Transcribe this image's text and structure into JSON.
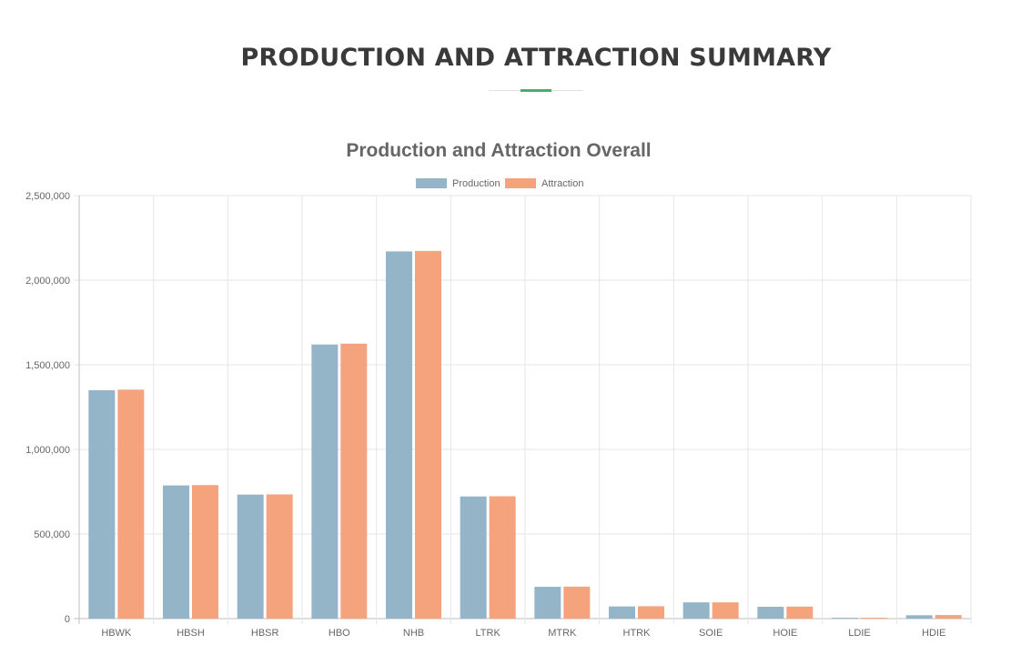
{
  "page": {
    "section_title": "PRODUCTION AND ATTRACTION SUMMARY",
    "accent_color": "#43b36b"
  },
  "chart_data": {
    "type": "bar",
    "title": "Production and Attraction Overall",
    "xlabel": "",
    "ylabel": "",
    "categories": [
      "HBWK",
      "HBSH",
      "HBSR",
      "HBO",
      "NHB",
      "LTRK",
      "MTRK",
      "HTRK",
      "SOIE",
      "HOIE",
      "LDIE",
      "HDIE"
    ],
    "series": [
      {
        "name": "Production",
        "color": "#94b5c7",
        "values": [
          1350000,
          787000,
          733000,
          1620000,
          2170000,
          722000,
          188000,
          72000,
          96000,
          70000,
          5000,
          20000
        ]
      },
      {
        "name": "Attraction",
        "color": "#f4a37c",
        "values": [
          1353000,
          789000,
          734000,
          1625000,
          2173000,
          723000,
          189000,
          73000,
          96000,
          71000,
          5000,
          21000
        ]
      }
    ],
    "ylim": [
      0,
      2500000
    ],
    "yticks": [
      0,
      500000,
      1000000,
      1500000,
      2000000,
      2500000
    ],
    "ytick_labels": [
      "0",
      "500,000",
      "1,000,000",
      "1,500,000",
      "2,000,000",
      "2,500,000"
    ],
    "grid": true,
    "legend": "top-center"
  }
}
